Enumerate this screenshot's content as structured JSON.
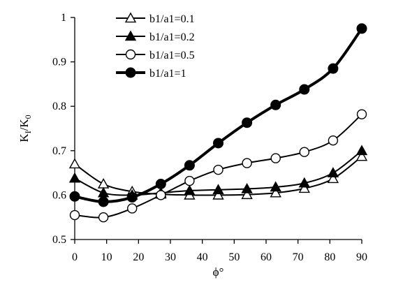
{
  "chart_data": {
    "type": "line",
    "title": "",
    "xlabel": "ϕ°",
    "ylabel": {
      "main": "K",
      "sub1": "I",
      "mid": "/K",
      "sub2": "0"
    },
    "xlim": [
      0,
      90
    ],
    "ylim": [
      0.5,
      1.0
    ],
    "x_ticks": [
      "0",
      "10",
      "20",
      "30",
      "40",
      "50",
      "60",
      "70",
      "80",
      "90"
    ],
    "y_ticks": [
      "0.5",
      "0.6",
      "0.7",
      "0.8",
      "0.9",
      "1"
    ],
    "grid": false,
    "legend_position": "top-left",
    "series": [
      {
        "name": "b1/a1=0.1",
        "marker": "open-triangle",
        "x": [
          0,
          9,
          18,
          27,
          36,
          45,
          54,
          63,
          72,
          81,
          90
        ],
        "values": [
          0.67,
          0.625,
          0.608,
          0.602,
          0.6,
          0.6,
          0.601,
          0.605,
          0.615,
          0.637,
          0.687
        ]
      },
      {
        "name": "b1/a1=0.2",
        "marker": "filled-triangle",
        "x": [
          0,
          9,
          18,
          27,
          36,
          45,
          54,
          63,
          72,
          81,
          90
        ],
        "values": [
          0.638,
          0.605,
          0.6,
          0.605,
          0.61,
          0.612,
          0.614,
          0.618,
          0.627,
          0.65,
          0.7
        ]
      },
      {
        "name": "b1/a1=0.5",
        "marker": "open-circle",
        "x": [
          0,
          9,
          18,
          27,
          36,
          45,
          54,
          63,
          72,
          81,
          90
        ],
        "values": [
          0.555,
          0.55,
          0.57,
          0.6,
          0.632,
          0.657,
          0.672,
          0.683,
          0.697,
          0.723,
          0.782
        ]
      },
      {
        "name": "b1/a1=1",
        "marker": "filled-circle",
        "x": [
          0,
          9,
          18,
          27,
          36,
          45,
          54,
          63,
          72,
          81,
          90
        ],
        "values": [
          0.597,
          0.585,
          0.595,
          0.625,
          0.667,
          0.717,
          0.763,
          0.803,
          0.838,
          0.885,
          0.975
        ]
      }
    ]
  }
}
